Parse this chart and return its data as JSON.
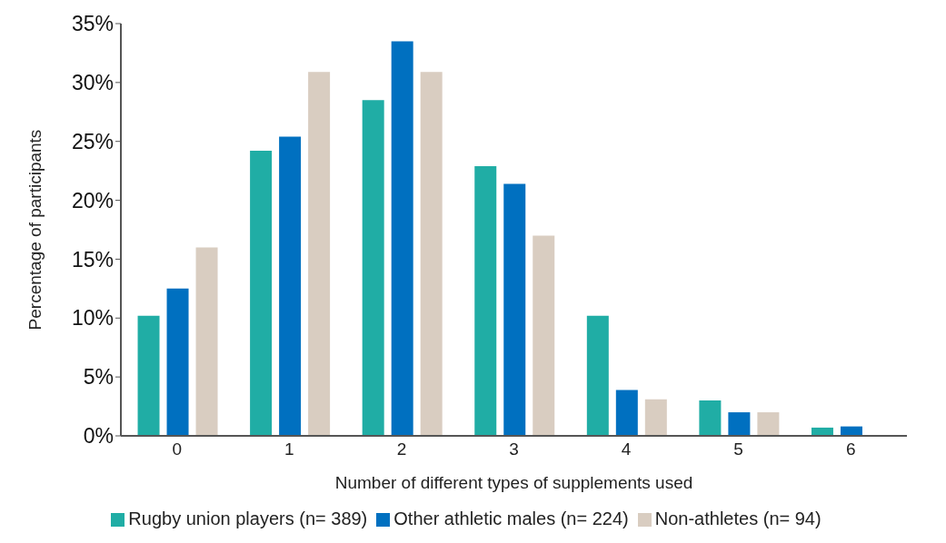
{
  "chart_data": {
    "type": "bar",
    "xlabel": "Number of different types of supplements used",
    "ylabel": "Percentage of participants",
    "categories": [
      "0",
      "1",
      "2",
      "3",
      "4",
      "5",
      "6"
    ],
    "series": [
      {
        "name": "Rugby union players (n= 389)",
        "color": "#20ada5",
        "values": [
          10.2,
          24.2,
          28.5,
          22.9,
          10.2,
          3.0,
          0.7
        ]
      },
      {
        "name": "Other athletic males (n= 224)",
        "color": "#0070c0",
        "values": [
          12.5,
          25.4,
          33.5,
          21.4,
          3.9,
          2.0,
          0.8
        ]
      },
      {
        "name": "Non-athletes (n= 94)",
        "color": "#d9cdc1",
        "values": [
          16.0,
          30.9,
          30.9,
          17.0,
          3.1,
          2.0,
          0
        ]
      }
    ],
    "ylim": [
      0,
      35
    ],
    "yticks": [
      {
        "value": 0,
        "label": "0%"
      },
      {
        "value": 5,
        "label": "5%"
      },
      {
        "value": 10,
        "label": "10%"
      },
      {
        "value": 15,
        "label": "15%"
      },
      {
        "value": 20,
        "label": "20%"
      },
      {
        "value": 25,
        "label": "25%"
      },
      {
        "value": 30,
        "label": "30%"
      },
      {
        "value": 35,
        "label": "35%"
      }
    ],
    "grid": false,
    "legend": "bottom"
  }
}
